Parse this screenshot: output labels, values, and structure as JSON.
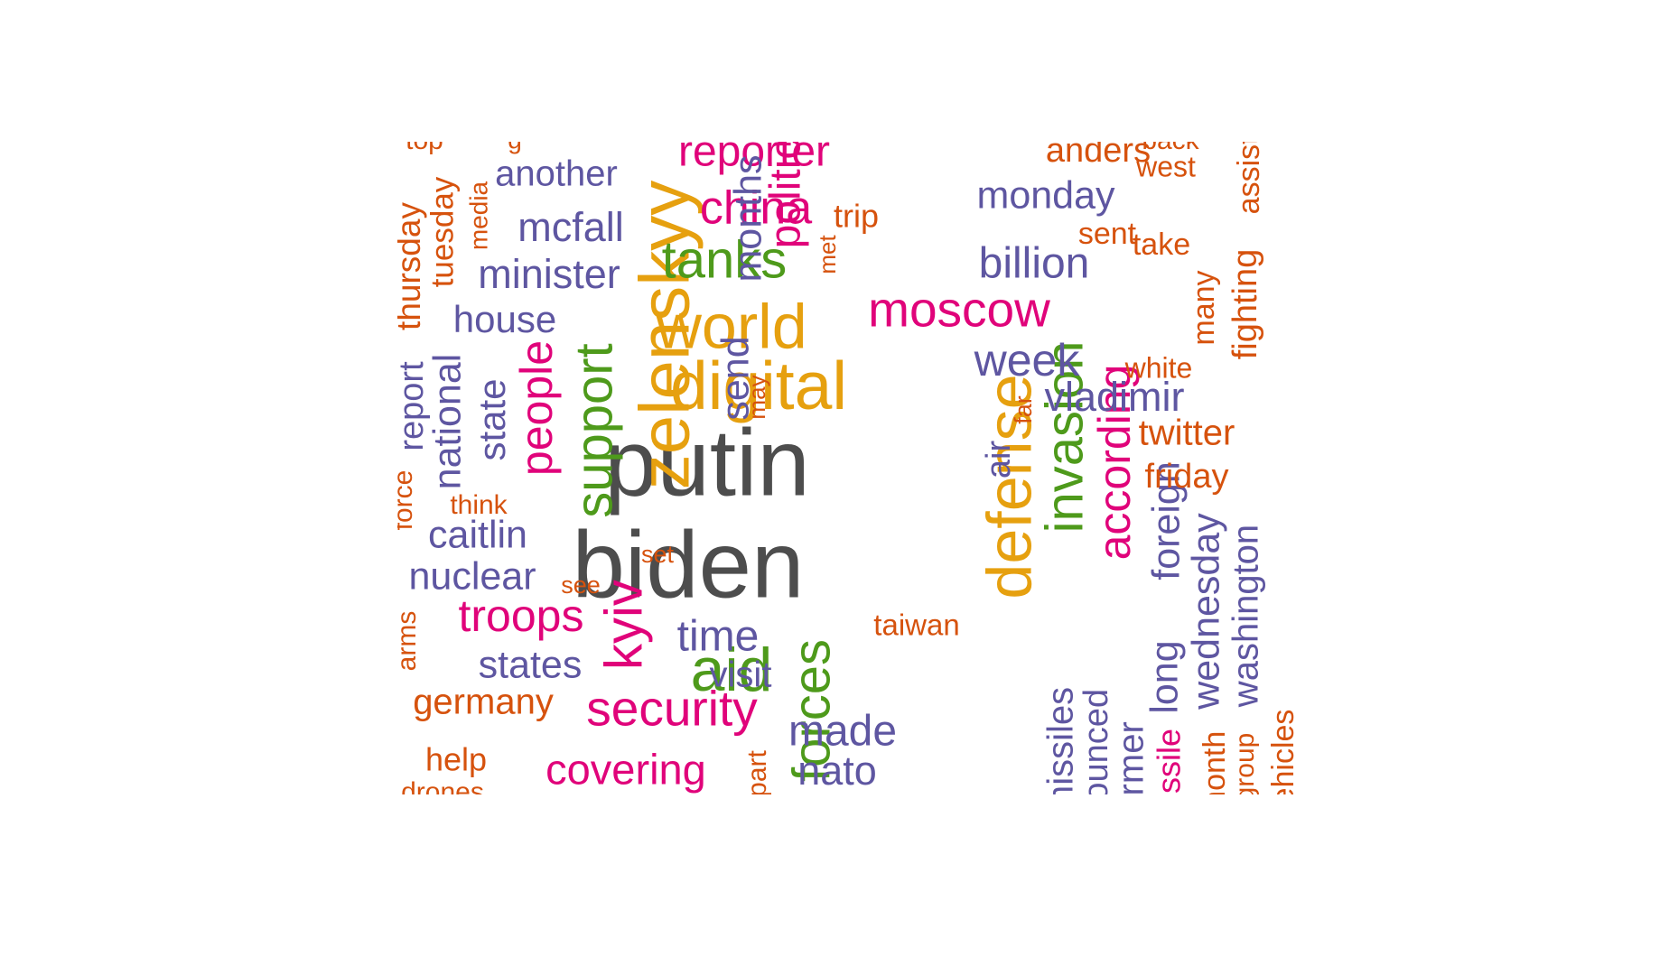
{
  "colors": {
    "gray": "#4d4d4d",
    "orange": "#e6a00f",
    "green": "#4e9a1b",
    "pink": "#e0037a",
    "purple": "#5e56a1",
    "rust": "#d6520d",
    "background": "#ffffff"
  },
  "words": [
    {
      "text": "putin",
      "color": "gray"
    },
    {
      "text": "biden",
      "color": "gray"
    },
    {
      "text": "zelenskyy",
      "color": "orange"
    },
    {
      "text": "digital",
      "color": "orange"
    },
    {
      "text": "world",
      "color": "orange"
    },
    {
      "text": "defense",
      "color": "orange"
    },
    {
      "text": "support",
      "color": "green"
    },
    {
      "text": "tanks",
      "color": "green"
    },
    {
      "text": "aid",
      "color": "green"
    },
    {
      "text": "invasion",
      "color": "green"
    },
    {
      "text": "forces",
      "color": "green"
    },
    {
      "text": "moscow",
      "color": "pink"
    },
    {
      "text": "china",
      "color": "pink"
    },
    {
      "text": "reporter",
      "color": "pink"
    },
    {
      "text": "security",
      "color": "pink"
    },
    {
      "text": "kyiv",
      "color": "pink"
    },
    {
      "text": "troops",
      "color": "pink"
    },
    {
      "text": "people",
      "color": "pink"
    },
    {
      "text": "covering",
      "color": "pink"
    },
    {
      "text": "according",
      "color": "pink"
    },
    {
      "text": "politics",
      "color": "pink"
    },
    {
      "text": "another",
      "color": "purple"
    },
    {
      "text": "mcfall",
      "color": "purple"
    },
    {
      "text": "minister",
      "color": "purple"
    },
    {
      "text": "house",
      "color": "purple"
    },
    {
      "text": "caitlin",
      "color": "purple"
    },
    {
      "text": "nuclear",
      "color": "purple"
    },
    {
      "text": "states",
      "color": "purple"
    },
    {
      "text": "time",
      "color": "purple"
    },
    {
      "text": "visit",
      "color": "purple"
    },
    {
      "text": "made",
      "color": "purple"
    },
    {
      "text": "nato",
      "color": "purple"
    },
    {
      "text": "monday",
      "color": "purple"
    },
    {
      "text": "billion",
      "color": "purple"
    },
    {
      "text": "week",
      "color": "purple"
    },
    {
      "text": "vladimir",
      "color": "purple"
    },
    {
      "text": "months",
      "color": "purple"
    },
    {
      "text": "send",
      "color": "purple"
    },
    {
      "text": "state",
      "color": "purple"
    },
    {
      "text": "national",
      "color": "purple"
    },
    {
      "text": "report",
      "color": "purple"
    },
    {
      "text": "foreign",
      "color": "purple"
    },
    {
      "text": "long",
      "color": "purple"
    },
    {
      "text": "wednesday",
      "color": "purple"
    },
    {
      "text": "washington",
      "color": "purple"
    },
    {
      "text": "air",
      "color": "purple"
    },
    {
      "text": "missiles",
      "color": "purple"
    },
    {
      "text": "former",
      "color": "purple"
    },
    {
      "text": "anders",
      "color": "rust"
    },
    {
      "text": "west",
      "color": "rust"
    },
    {
      "text": "back",
      "color": "rust"
    },
    {
      "text": "trip",
      "color": "rust"
    },
    {
      "text": "sent",
      "color": "rust"
    },
    {
      "text": "take",
      "color": "rust"
    },
    {
      "text": "white",
      "color": "rust"
    },
    {
      "text": "twitter",
      "color": "rust"
    },
    {
      "text": "friday",
      "color": "rust"
    },
    {
      "text": "taiwan",
      "color": "rust"
    },
    {
      "text": "germany",
      "color": "rust"
    },
    {
      "text": "help",
      "color": "rust"
    },
    {
      "text": "drones",
      "color": "rust"
    },
    {
      "text": "think",
      "color": "rust"
    },
    {
      "text": "set",
      "color": "rust"
    },
    {
      "text": "see",
      "color": "rust"
    },
    {
      "text": "arms",
      "color": "rust"
    },
    {
      "text": "force",
      "color": "rust"
    },
    {
      "text": "thursday",
      "color": "rust"
    },
    {
      "text": "tuesday",
      "color": "rust"
    },
    {
      "text": "media",
      "color": "rust"
    },
    {
      "text": "met",
      "color": "rust"
    },
    {
      "text": "may",
      "color": "rust"
    },
    {
      "text": "far",
      "color": "rust"
    },
    {
      "text": "many",
      "color": "rust"
    },
    {
      "text": "fighting",
      "color": "rust"
    },
    {
      "text": "assistance",
      "color": "rust"
    },
    {
      "text": "top",
      "color": "rust"
    },
    {
      "text": "part",
      "color": "rust"
    },
    {
      "text": "announced",
      "color": "purple"
    },
    {
      "text": "missile",
      "color": "pink"
    },
    {
      "text": "month",
      "color": "rust"
    },
    {
      "text": "group",
      "color": "rust"
    },
    {
      "text": "vehicles",
      "color": "rust"
    },
    {
      "text": "g",
      "color": "rust"
    }
  ]
}
